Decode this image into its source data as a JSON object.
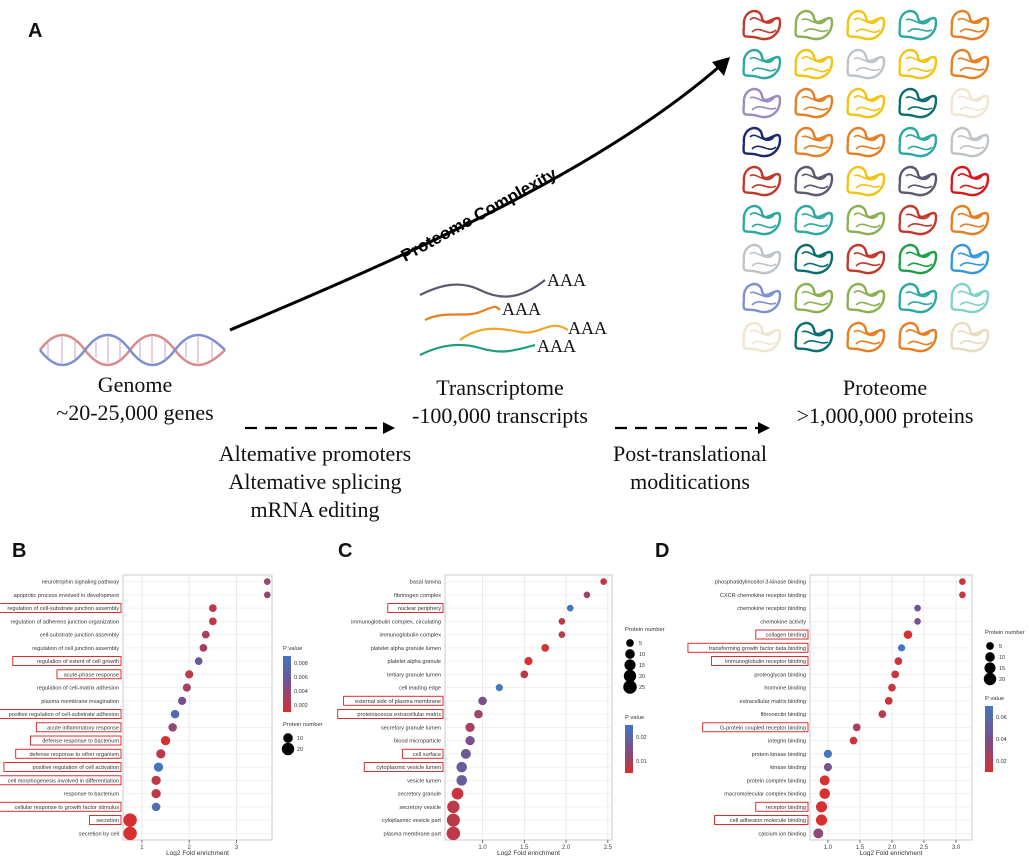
{
  "panelA": {
    "letter": "A",
    "genome_title": "Genome",
    "genome_count": "~20-25,000 genes",
    "transcriptome_title": "Transcriptome",
    "transcriptome_count": "-100,000 transcripts",
    "proteome_title": "Proteome",
    "proteome_count": ">1,000,000 proteins",
    "step1": [
      "Altemative promoters",
      "Altemative splicing",
      "mRNA editing"
    ],
    "step2": [
      "Post-translational",
      "moditications"
    ],
    "arrow_label": "Proteome Complexity",
    "poly_a": [
      "AAA",
      "AAA",
      "AAA",
      "AAA"
    ],
    "protein_palettes": [
      [
        "#c0392b",
        "#8bb051",
        "#f1c40f",
        "#2ba8a0",
        "#e67e22"
      ],
      [
        "#2ba8a0",
        "#f1c40f",
        "#bdc3c7",
        "#f1c40f",
        "#e67e22"
      ],
      [
        "#9b89c4",
        "#e67e22",
        "#f1c40f",
        "#0b6e6e",
        "#efe5d0"
      ],
      [
        "#1a2a6c",
        "#e67e22",
        "#e67e22",
        "#2ba8a0",
        "#bdc3c7"
      ],
      [
        "#c0392b",
        "#5a5a6e",
        "#f1c40f",
        "#5a5a6e",
        "#d7191c"
      ],
      [
        "#2ba8a0",
        "#2ba8a0",
        "#8bb051",
        "#c0392b",
        "#e67e22"
      ],
      [
        "#bdc3c7",
        "#0b6e6e",
        "#c0392b",
        "#1e9f48",
        "#3498db"
      ],
      [
        "#7f8fcf",
        "#8bb051",
        "#8bb051",
        "#2ba8a0",
        "#7fd3c8"
      ],
      [
        "#efe5d0",
        "#0b6e6e",
        "#e67e22",
        "#e67e22",
        "#e8dcc0"
      ]
    ]
  },
  "chart_data": [
    {
      "panel": "B",
      "type": "scatter",
      "xlabel": "Log2 Fold enrichment",
      "xlim": [
        0.6,
        3.75
      ],
      "xticks": [
        1,
        2,
        3
      ],
      "size_legend_title": "Protein number",
      "size_legend_values": [
        10,
        20
      ],
      "color_legend_title": "P value",
      "color_legend_ticks": [
        "0.008",
        "0.006",
        "0.004",
        "0.002"
      ],
      "color_range": [
        0.001,
        0.009
      ],
      "terms": [
        "neurotrophin signaling pathway",
        "apoptotic process involved in development",
        "regulation of cell-substrate junction assembly",
        "regulation of adherens junction organization",
        "cell-substrate junction assembly",
        "regulation of cell junction assembly",
        "regulation of extent of cell growth",
        "acute-phase response",
        "regulation of cell-matrix adhesion",
        "plasma membrane invagination",
        "positive regulation of cell-substrate adhesion",
        "acute inflammatory response",
        "defense response to bacterium",
        "defense response to other organism",
        "positive regulation of cell activation",
        "cell morphogenesis involved in differentiation",
        "response to bacterium",
        "cellular response to growth factor stimulus",
        "secretion",
        "secretion by cell"
      ],
      "highlighted": [
        false,
        false,
        true,
        false,
        false,
        false,
        true,
        true,
        false,
        false,
        true,
        true,
        true,
        true,
        true,
        true,
        false,
        true,
        true,
        false
      ],
      "x": [
        3.65,
        3.65,
        2.5,
        2.5,
        2.35,
        2.3,
        2.2,
        2.0,
        1.95,
        1.85,
        1.7,
        1.65,
        1.5,
        1.4,
        1.35,
        1.3,
        1.3,
        1.3,
        0.75,
        0.75
      ],
      "size": [
        3,
        3,
        5,
        5,
        5,
        5,
        5,
        6,
        6,
        6,
        7,
        7,
        9,
        9,
        9,
        9,
        9,
        7,
        25,
        25
      ],
      "pvalue": [
        0.004,
        0.004,
        0.002,
        0.002,
        0.003,
        0.003,
        0.006,
        0.002,
        0.003,
        0.005,
        0.008,
        0.004,
        0.001,
        0.002,
        0.009,
        0.002,
        0.002,
        0.008,
        0.001,
        0.001
      ]
    },
    {
      "panel": "C",
      "type": "scatter",
      "xlabel": "Log2 Fold enrichment",
      "xlim": [
        0.55,
        2.55
      ],
      "xticks": [
        1.0,
        1.5,
        2.0,
        2.5
      ],
      "size_legend_title": "Protein number",
      "size_legend_values": [
        5,
        10,
        15,
        20,
        25
      ],
      "color_legend_title": "P value",
      "color_legend_ticks": [
        "0.02",
        "0.01"
      ],
      "color_range": [
        0.001,
        0.03
      ],
      "terms": [
        "basal lamina",
        "fibrinogen complex",
        "nuclear periphery",
        "immunoglobulin complex, circulating",
        "immunoglobulin complex",
        "platelet alpha granule lumen",
        "platelet alpha granule",
        "tertiary granule lumen",
        "cell leading edge",
        "external side of plasma membrane",
        "proteinaceous extracellular matrix",
        "secretory granule lumen",
        "blood microparticle",
        "cell surface",
        "cytoplasmic vesicle lumen",
        "vesicle lumen",
        "secretory granule",
        "secretory vesicle",
        "cytoplasmic vesicle part",
        "plasma membrane part"
      ],
      "highlighted": [
        false,
        false,
        true,
        false,
        false,
        false,
        false,
        false,
        false,
        true,
        true,
        false,
        false,
        true,
        true,
        false,
        false,
        false,
        false,
        false
      ],
      "x": [
        2.45,
        2.25,
        2.05,
        1.95,
        1.95,
        1.75,
        1.55,
        1.5,
        1.2,
        1.0,
        0.95,
        0.85,
        0.85,
        0.8,
        0.75,
        0.75,
        0.7,
        0.65,
        0.65,
        0.65
      ],
      "size": [
        3,
        3,
        3,
        3,
        3,
        5,
        6,
        5,
        4,
        7,
        7,
        9,
        9,
        11,
        13,
        13,
        17,
        20,
        23,
        25
      ],
      "pvalue": [
        0.005,
        0.01,
        0.03,
        0.005,
        0.005,
        0.002,
        0.001,
        0.005,
        0.03,
        0.015,
        0.01,
        0.008,
        0.015,
        0.018,
        0.02,
        0.02,
        0.003,
        0.005,
        0.005,
        0.005
      ]
    },
    {
      "panel": "D",
      "type": "scatter",
      "xlabel": "Log2 Fold enrichment",
      "xlim": [
        0.72,
        3.25
      ],
      "xticks": [
        1.0,
        1.5,
        2.0,
        2.5,
        3.0
      ],
      "size_legend_title": "Protein number",
      "size_legend_values": [
        5,
        10,
        15,
        20
      ],
      "color_legend_title": "P value",
      "color_legend_ticks": [
        "0.06",
        "0.04",
        "0.02"
      ],
      "color_range": [
        0.005,
        0.07
      ],
      "terms": [
        "phosphatidylinositol 3-kinase binding",
        "CXCR chemokine receptor binding",
        "chemokine receptor binding",
        "chemokine activity",
        "collagen binding",
        "transforming growth factor beta binding",
        "immunoglobulin receptor binding",
        "proteoglycan binding",
        "hormone binding",
        "extracellular matrix binding",
        "fibronectin binding",
        "G-protein coupled receptor binding",
        "integrin binding",
        "protein kinase binding",
        "kinase binding",
        "protein complex binding",
        "macromolecular complex binding",
        "receptor binding",
        "cell adhesion molecule binding",
        "calcium ion binding"
      ],
      "highlighted": [
        false,
        false,
        false,
        false,
        true,
        true,
        true,
        false,
        false,
        false,
        false,
        true,
        false,
        false,
        false,
        false,
        false,
        true,
        true,
        false
      ],
      "x": [
        3.1,
        3.1,
        2.4,
        2.4,
        2.25,
        2.15,
        2.1,
        2.05,
        2.0,
        1.95,
        1.85,
        1.45,
        1.4,
        1.0,
        1.0,
        0.95,
        0.95,
        0.9,
        0.9,
        0.85
      ],
      "size": [
        3,
        3,
        3,
        3,
        7,
        4,
        5,
        5,
        5,
        5,
        5,
        5,
        5,
        6,
        6,
        11,
        13,
        15,
        15,
        11
      ],
      "pvalue": [
        0.01,
        0.01,
        0.04,
        0.04,
        0.005,
        0.07,
        0.01,
        0.01,
        0.01,
        0.01,
        0.015,
        0.02,
        0.01,
        0.07,
        0.04,
        0.005,
        0.005,
        0.005,
        0.005,
        0.03
      ]
    }
  ]
}
